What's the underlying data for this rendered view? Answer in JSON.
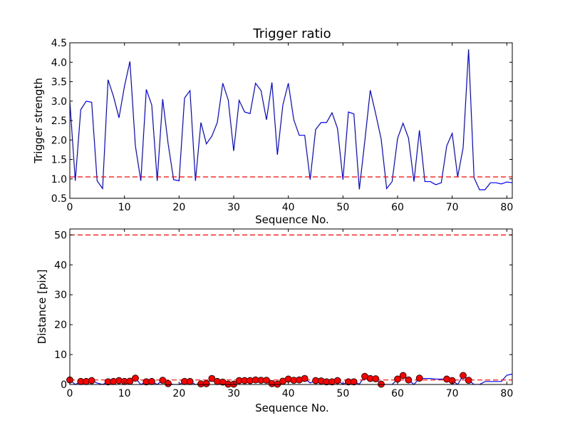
{
  "chart_data": [
    {
      "type": "line",
      "title": "Trigger ratio",
      "xlabel": "Sequence No.",
      "ylabel": "Trigger strength",
      "xlim": [
        0,
        81
      ],
      "ylim": [
        0.5,
        4.5
      ],
      "xticks": [
        0,
        10,
        20,
        30,
        40,
        50,
        60,
        70,
        80
      ],
      "yticks": [
        0.5,
        1.0,
        1.5,
        2.0,
        2.5,
        3.0,
        3.5,
        4.0,
        4.5
      ],
      "tick_labels_x": [
        "0",
        "10",
        "20",
        "30",
        "40",
        "50",
        "60",
        "70",
        "80"
      ],
      "tick_labels_y": [
        "0.5",
        "1.0",
        "1.5",
        "2.0",
        "2.5",
        "3.0",
        "3.5",
        "4.0",
        "4.5"
      ],
      "grid": false,
      "series": [
        {
          "color": "#0000ff",
          "style": "solid",
          "x": [
            0,
            1,
            2,
            3,
            4,
            5,
            6,
            7,
            8,
            9,
            10,
            11,
            12,
            13,
            14,
            15,
            16,
            17,
            18,
            19,
            20,
            21,
            22,
            23,
            24,
            25,
            26,
            27,
            28,
            29,
            30,
            31,
            32,
            33,
            34,
            35,
            36,
            37,
            38,
            39,
            40,
            41,
            42,
            43,
            44,
            45,
            46,
            47,
            48,
            49,
            50,
            51,
            52,
            53,
            54,
            55,
            56,
            57,
            58,
            59,
            60,
            61,
            62,
            63,
            64,
            65,
            66,
            67,
            68,
            69,
            70,
            71,
            72,
            73,
            74,
            75,
            76,
            77,
            78,
            79,
            80,
            81
          ],
          "y": [
            3.0,
            0.95,
            2.78,
            3.0,
            2.97,
            0.95,
            0.75,
            3.55,
            3.12,
            2.57,
            3.38,
            4.02,
            1.85,
            0.95,
            3.3,
            2.9,
            0.95,
            3.05,
            1.9,
            0.98,
            0.95,
            3.08,
            3.27,
            0.95,
            2.45,
            1.9,
            2.1,
            2.45,
            3.46,
            3.03,
            1.72,
            3.02,
            2.72,
            2.68,
            3.46,
            3.27,
            2.52,
            3.48,
            1.62,
            2.9,
            3.46,
            2.52,
            2.12,
            2.12,
            0.98,
            2.27,
            2.45,
            2.45,
            2.7,
            2.3,
            0.98,
            2.72,
            2.67,
            0.73,
            1.97,
            3.28,
            2.67,
            2.02,
            0.75,
            0.93,
            2.04,
            2.43,
            2.05,
            0.93,
            2.25,
            0.93,
            0.93,
            0.85,
            0.9,
            1.85,
            2.17,
            1.05,
            1.8,
            4.33,
            1.03,
            0.72,
            0.72,
            0.9,
            0.9,
            0.87,
            0.92,
            0.9
          ]
        },
        {
          "color": "#ff0000",
          "style": "dashed",
          "x": [
            0,
            81
          ],
          "y": [
            1.05,
            1.05
          ]
        }
      ]
    },
    {
      "type": "scatter",
      "title": "",
      "xlabel": "Sequence No.",
      "ylabel": "Distance [pix]",
      "xlim": [
        0,
        81
      ],
      "ylim": [
        0,
        52
      ],
      "xticks": [
        0,
        10,
        20,
        30,
        40,
        50,
        60,
        70,
        80
      ],
      "yticks": [
        0,
        10,
        20,
        30,
        40,
        50
      ],
      "tick_labels_x": [
        "0",
        "10",
        "20",
        "30",
        "40",
        "50",
        "60",
        "70",
        "80"
      ],
      "tick_labels_y": [
        "0",
        "10",
        "20",
        "30",
        "40",
        "50"
      ],
      "grid": false,
      "series": [
        {
          "color": "#0000ff",
          "style": "solid",
          "x": [
            0,
            1,
            2,
            3,
            4,
            5,
            6,
            7,
            8,
            9,
            10,
            11,
            12,
            13,
            14,
            15,
            16,
            17,
            18,
            19,
            20,
            21,
            22,
            23,
            24,
            25,
            26,
            27,
            28,
            29,
            30,
            31,
            32,
            33,
            34,
            35,
            36,
            37,
            38,
            39,
            40,
            41,
            42,
            43,
            44,
            45,
            46,
            47,
            48,
            49,
            50,
            51,
            52,
            53,
            54,
            55,
            56,
            57,
            58,
            59,
            60,
            61,
            62,
            63,
            64,
            65,
            66,
            67,
            68,
            69,
            70,
            71,
            72,
            73,
            74,
            75,
            76,
            77,
            78,
            79,
            80,
            81
          ],
          "y": [
            1.5,
            0,
            1.0,
            1.0,
            1.3,
            0.5,
            0,
            0.9,
            1.0,
            1.3,
            1.0,
            1.1,
            2.1,
            0,
            0.9,
            1.0,
            0,
            1.4,
            0.3,
            0,
            0,
            1.0,
            1.0,
            0,
            0.2,
            0.3,
            2.0,
            1.0,
            0.8,
            0.1,
            0.1,
            1.3,
            1.3,
            1.3,
            1.5,
            1.4,
            1.4,
            0.3,
            0.1,
            1.1,
            1.8,
            1.4,
            1.5,
            2.0,
            0.5,
            1.3,
            1.2,
            0.9,
            0.9,
            1.3,
            0.1,
            0.9,
            0.9,
            0.1,
            2.7,
            2.0,
            1.9,
            0.1,
            0,
            0,
            1.8,
            3.0,
            1.5,
            0,
            2.1,
            2.0,
            2.0,
            1.8,
            1.8,
            1.8,
            1.3,
            0,
            3.0,
            1.4,
            0,
            0,
            1.0,
            1.0,
            1.0,
            1.0,
            3.1,
            3.5
          ]
        },
        {
          "color": "#ff0000",
          "style": "markers",
          "x": [
            0,
            2,
            3,
            4,
            7,
            8,
            9,
            10,
            11,
            12,
            14,
            15,
            17,
            18,
            21,
            22,
            24,
            25,
            26,
            27,
            28,
            29,
            30,
            31,
            32,
            33,
            34,
            35,
            36,
            37,
            38,
            39,
            40,
            41,
            42,
            43,
            45,
            46,
            47,
            48,
            49,
            51,
            52,
            54,
            55,
            56,
            57,
            60,
            61,
            62,
            64,
            69,
            70,
            72,
            73
          ],
          "y": [
            1.5,
            1.0,
            1.0,
            1.3,
            0.9,
            1.0,
            1.3,
            1.0,
            1.1,
            2.1,
            0.9,
            1.0,
            1.4,
            0.3,
            1.0,
            1.0,
            0.2,
            0.3,
            2.0,
            1.0,
            0.8,
            0.1,
            0.1,
            1.3,
            1.3,
            1.3,
            1.5,
            1.4,
            1.4,
            0.3,
            0.1,
            1.1,
            1.8,
            1.4,
            1.5,
            2.0,
            1.3,
            1.2,
            0.9,
            0.9,
            1.3,
            0.9,
            0.9,
            2.7,
            2.0,
            1.9,
            0.1,
            1.8,
            3.0,
            1.5,
            2.1,
            1.8,
            1.3,
            3.0,
            1.4
          ]
        },
        {
          "color": "#ff0000",
          "style": "dashed",
          "x": [
            0,
            81
          ],
          "y": [
            50,
            50
          ]
        },
        {
          "color": "#ff0000",
          "style": "dashed",
          "x": [
            0,
            81
          ],
          "y": [
            1.5,
            1.5
          ]
        }
      ]
    }
  ]
}
